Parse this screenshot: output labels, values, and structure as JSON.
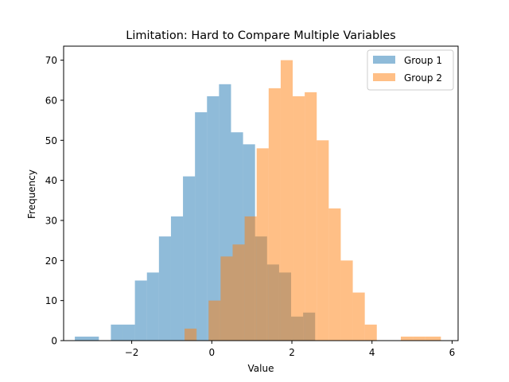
{
  "chart_data": {
    "type": "bar",
    "title": "Limitation: Hard to Compare Multiple Variables",
    "xlabel": "Value",
    "ylabel": "Frequency",
    "xlim": [
      -3.7,
      6.15
    ],
    "ylim": [
      0,
      73.5
    ],
    "xticks": [
      -2,
      0,
      2,
      4,
      6
    ],
    "xtick_labels": [
      "−2",
      "0",
      "2",
      "4",
      "6"
    ],
    "yticks": [
      0,
      10,
      20,
      30,
      40,
      50,
      60,
      70
    ],
    "grid": false,
    "legend_position": "top-right",
    "series": [
      {
        "name": "Group 1",
        "color": "#1f77b4",
        "alpha": 0.5,
        "bin_edges": [
          -3.42,
          -2.82,
          -2.52,
          -2.22,
          -1.92,
          -1.62,
          -1.32,
          -1.02,
          -0.72,
          -0.42,
          -0.12,
          0.18,
          0.48,
          0.78,
          1.08,
          1.38,
          1.68,
          1.98,
          2.28,
          2.58
        ],
        "counts": [
          1,
          0,
          4,
          4,
          15,
          17,
          26,
          31,
          41,
          57,
          61,
          64,
          52,
          49,
          26,
          19,
          17,
          6,
          7
        ]
      },
      {
        "name": "Group 2",
        "color": "#ff7f0e",
        "alpha": 0.5,
        "bin_edges": [
          -0.68,
          -0.38,
          -0.08,
          0.22,
          0.52,
          0.82,
          1.12,
          1.42,
          1.72,
          2.02,
          2.32,
          2.62,
          2.92,
          3.22,
          3.52,
          3.82,
          4.12,
          4.42,
          4.72,
          5.02,
          5.32,
          5.72
        ],
        "counts": [
          3,
          0,
          10,
          21,
          24,
          31,
          48,
          63,
          70,
          61,
          62,
          50,
          33,
          20,
          12,
          4,
          0,
          0,
          1,
          1,
          1
        ]
      }
    ]
  }
}
